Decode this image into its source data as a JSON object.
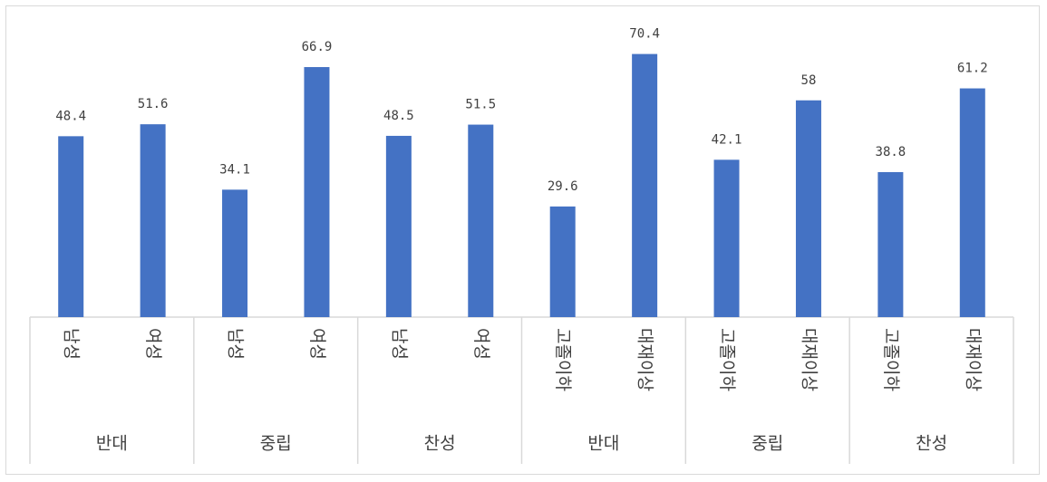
{
  "chart_data": {
    "type": "bar",
    "color": "#4472c4",
    "ylim": [
      0,
      80
    ],
    "grid": false,
    "legend": "none",
    "groups": [
      {
        "label": "반대",
        "categories": [
          "남성",
          "여성"
        ],
        "values": [
          48.4,
          51.6
        ]
      },
      {
        "label": "중립",
        "categories": [
          "남성",
          "여성"
        ],
        "values": [
          34.1,
          66.9
        ]
      },
      {
        "label": "찬성",
        "categories": [
          "남성",
          "여성"
        ],
        "values": [
          48.5,
          51.5
        ]
      },
      {
        "label": "반대",
        "categories": [
          "고졸이하",
          "대재이상"
        ],
        "values": [
          29.6,
          70.4
        ]
      },
      {
        "label": "중립",
        "categories": [
          "고졸이하",
          "대재이상"
        ],
        "values": [
          42.1,
          58
        ]
      },
      {
        "label": "찬성",
        "categories": [
          "고졸이하",
          "대재이상"
        ],
        "values": [
          38.8,
          61.2
        ]
      }
    ]
  }
}
